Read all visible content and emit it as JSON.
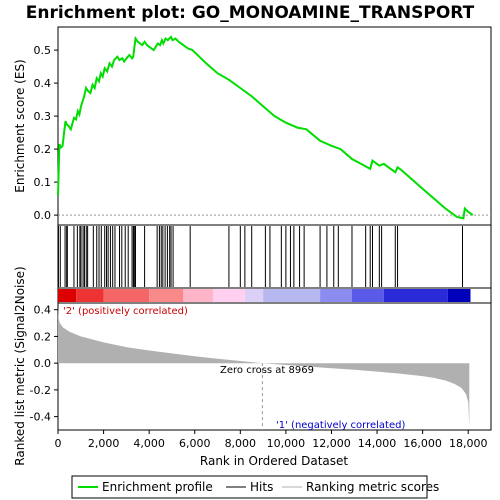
{
  "chart_data": {
    "type": "line",
    "title": "Enrichment plot: GO_MONOAMINE_TRANSPORT",
    "top_panel": {
      "ylabel": "Enrichment score (ES)",
      "ylim": [
        -0.03,
        0.57
      ],
      "yticks": [
        0.0,
        0.1,
        0.2,
        0.3,
        0.4,
        0.5
      ],
      "ytick_labels": [
        "0.0",
        "0.1",
        "0.2",
        "0.3",
        "0.4",
        "0.5"
      ],
      "series": [
        {
          "name": "Enrichment profile",
          "color": "#00dd00",
          "x": [
            0,
            60,
            130,
            200,
            260,
            330,
            380,
            460,
            560,
            700,
            790,
            870,
            940,
            1010,
            1080,
            1150,
            1230,
            1330,
            1420,
            1520,
            1610,
            1700,
            1800,
            1880,
            1960,
            2050,
            2160,
            2260,
            2370,
            2460,
            2600,
            2700,
            2820,
            2900,
            3010,
            3130,
            3250,
            3300,
            3400,
            3500,
            3600,
            3700,
            3800,
            3900,
            4000,
            4200,
            4380,
            4480,
            4560,
            4620,
            4720,
            4820,
            4890,
            4960,
            5030,
            5150,
            5300,
            5500,
            5700,
            5900,
            6500,
            7000,
            7500,
            8000,
            8500,
            9000,
            9500,
            10000,
            10500,
            10900,
            11500,
            12000,
            12400,
            12900,
            13300,
            13700,
            13800,
            13900,
            14100,
            14300,
            14600,
            14800,
            14900,
            15100,
            15500,
            16000,
            16500,
            17000,
            17500,
            17790,
            17850,
            18000,
            18200
          ],
          "y": [
            0.06,
            0.215,
            0.205,
            0.21,
            0.245,
            0.285,
            0.275,
            0.27,
            0.26,
            0.295,
            0.29,
            0.315,
            0.305,
            0.33,
            0.345,
            0.36,
            0.385,
            0.375,
            0.37,
            0.395,
            0.385,
            0.415,
            0.405,
            0.43,
            0.42,
            0.445,
            0.435,
            0.46,
            0.45,
            0.47,
            0.48,
            0.47,
            0.475,
            0.465,
            0.475,
            0.485,
            0.475,
            0.48,
            0.535,
            0.525,
            0.52,
            0.515,
            0.525,
            0.515,
            0.51,
            0.5,
            0.52,
            0.515,
            0.53,
            0.52,
            0.535,
            0.53,
            0.535,
            0.54,
            0.53,
            0.535,
            0.525,
            0.515,
            0.505,
            0.5,
            0.46,
            0.43,
            0.41,
            0.385,
            0.36,
            0.33,
            0.3,
            0.28,
            0.265,
            0.26,
            0.225,
            0.21,
            0.2,
            0.17,
            0.155,
            0.14,
            0.165,
            0.16,
            0.15,
            0.155,
            0.14,
            0.13,
            0.145,
            0.135,
            0.11,
            0.08,
            0.05,
            0.02,
            -0.005,
            -0.01,
            0.02,
            0.01,
            0.0
          ]
        }
      ]
    },
    "hits_panel": {
      "hit_positions": [
        20,
        100,
        310,
        380,
        410,
        700,
        850,
        960,
        1010,
        1100,
        1160,
        1240,
        1300,
        1550,
        1700,
        1800,
        1900,
        2050,
        2130,
        2200,
        2300,
        2400,
        2500,
        2700,
        2800,
        2950,
        3080,
        3250,
        3310,
        3350,
        3400,
        3800,
        4350,
        4450,
        4530,
        4600,
        4700,
        4800,
        4900,
        4960,
        5050,
        5800,
        7500,
        8000,
        8200,
        8500,
        9100,
        9300,
        9800,
        10000,
        10200,
        10350,
        10600,
        10800,
        11500,
        11800,
        12100,
        12300,
        12900,
        13500,
        13700,
        13800,
        14100,
        14200,
        14800,
        14900,
        17750
      ],
      "band_colors": [
        "#dd0000",
        "#ee3333",
        "#f56666",
        "#fa8a8a",
        "#ffb5c8",
        "#ffd0f0",
        "#ddd0f8",
        "#b8b8f0",
        "#8c8cf0",
        "#5a5ae8",
        "#2a2ad8",
        "#0000bb"
      ],
      "band_bounds": [
        0,
        800,
        2000,
        4000,
        5500,
        6800,
        8200,
        9000,
        11500,
        12900,
        14300,
        17100,
        18100
      ]
    },
    "metric_panel": {
      "ylabel": "Ranked list metric (Signal2Noise)",
      "ylim": [
        -0.5,
        0.45
      ],
      "yticks": [
        -0.4,
        -0.2,
        0.0,
        0.2,
        0.4
      ],
      "ytick_labels": [
        "-0.4",
        "-0.2",
        "0.0",
        "0.2",
        "0.4"
      ],
      "fill_color": "#b0b0b0",
      "x": [
        0,
        20,
        80,
        200,
        500,
        1000,
        2000,
        3000,
        4000,
        5000,
        6000,
        7000,
        8000,
        8969,
        10000,
        11000,
        12000,
        13000,
        14000,
        15000,
        16000,
        16500,
        17000,
        17400,
        17700,
        17900,
        18000,
        18050
      ],
      "y": [
        0.42,
        0.34,
        0.3,
        0.27,
        0.235,
        0.2,
        0.155,
        0.12,
        0.095,
        0.073,
        0.052,
        0.033,
        0.016,
        0.0,
        -0.014,
        -0.026,
        -0.038,
        -0.05,
        -0.063,
        -0.078,
        -0.097,
        -0.11,
        -0.13,
        -0.155,
        -0.185,
        -0.23,
        -0.29,
        -0.48
      ]
    },
    "x_axis": {
      "xlabel": "Rank in Ordered Dataset",
      "xlim": [
        0,
        19000
      ],
      "xticks": [
        0,
        2000,
        4000,
        6000,
        8000,
        10000,
        12000,
        14000,
        16000,
        18000
      ],
      "xtick_labels": [
        "0",
        "2,000",
        "4,000",
        "6,000",
        "8,000",
        "10,000",
        "12,000",
        "14,000",
        "16,000",
        "18,000"
      ],
      "data_max": 18100
    },
    "annotations": {
      "positive": "'2' (positively correlated)",
      "negative": "'1' (negatively correlated)",
      "zero_cross": "Zero cross at 8969",
      "zero_cross_value": 8969,
      "positive_color": "#cc0000",
      "negative_color": "#0000cc"
    },
    "legend": {
      "placement": "bottom",
      "items": [
        {
          "label": "Enrichment profile",
          "color": "#00dd00"
        },
        {
          "label": "Hits",
          "color": "#000000"
        },
        {
          "label": "Ranking metric scores",
          "color": "#b0b0b0"
        }
      ]
    }
  }
}
